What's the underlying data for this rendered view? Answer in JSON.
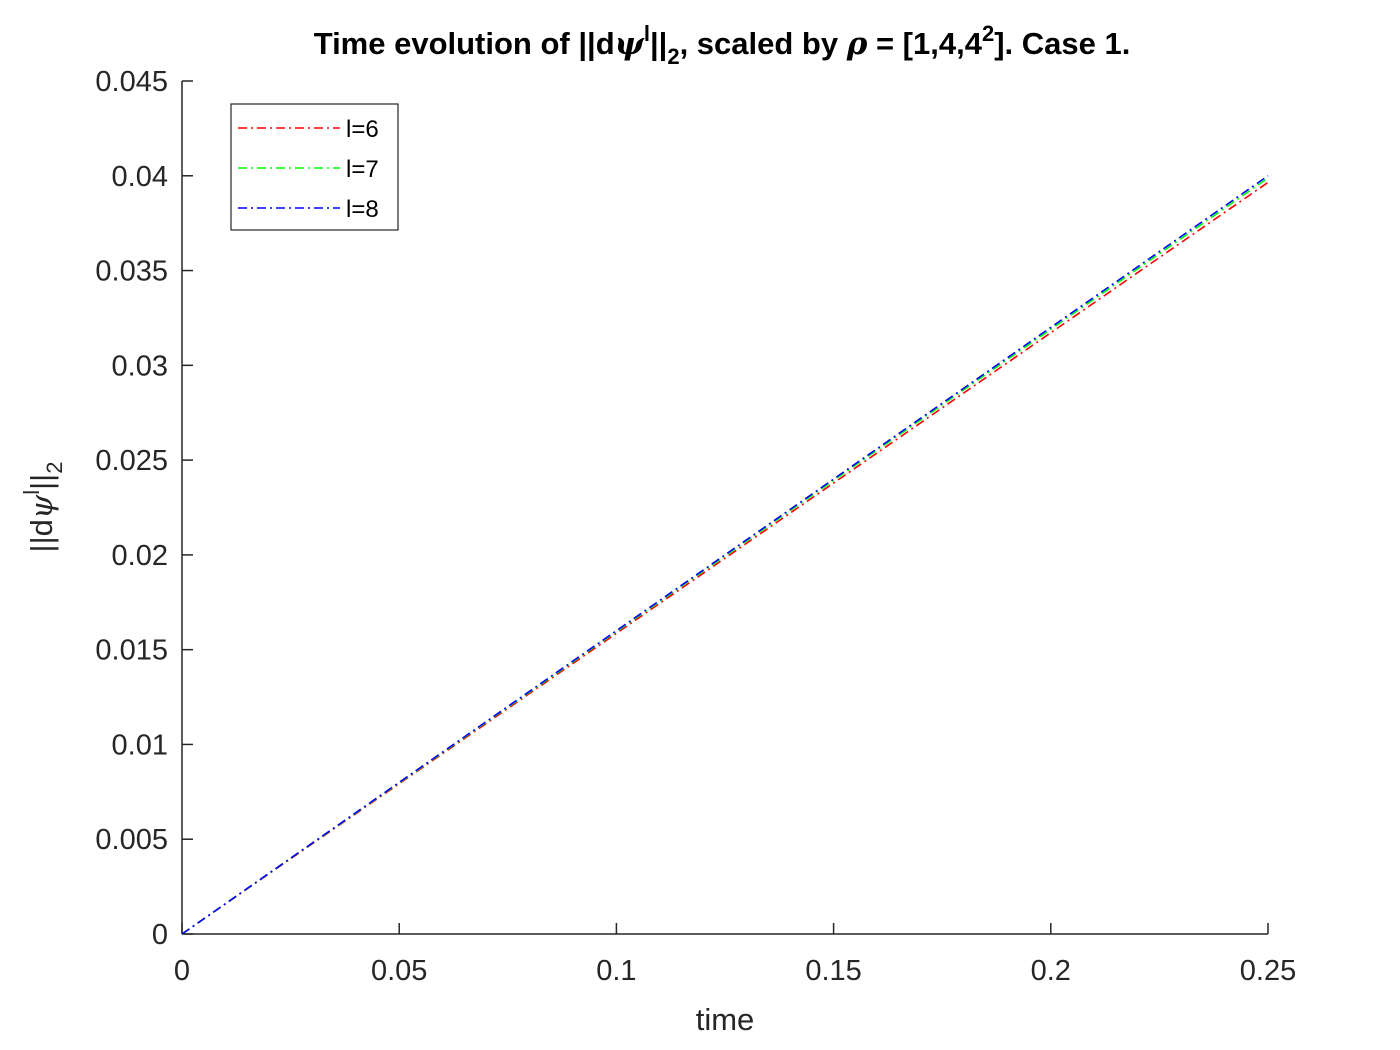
{
  "chart_data": {
    "type": "line",
    "title": {
      "prefix": "Time evolution of ||d",
      "psi": "ψ",
      "superscript": "l",
      "bars": "||",
      "subscript": "2",
      "middle": ", scaled by ",
      "rho": "ρ",
      "equals": " = [1,4,4",
      "power": "2",
      "suffix": "]. Case 1."
    },
    "xlabel": "time",
    "ylabel": {
      "prefix": "||d",
      "psi": "ψ",
      "superscript": "l",
      "bars": "||",
      "subscript": "2"
    },
    "xlim": [
      0,
      0.25
    ],
    "ylim": [
      0,
      0.045
    ],
    "xticks": [
      {
        "value": 0,
        "label": "0"
      },
      {
        "value": 0.05,
        "label": "0.05"
      },
      {
        "value": 0.1,
        "label": "0.1"
      },
      {
        "value": 0.15,
        "label": "0.15"
      },
      {
        "value": 0.2,
        "label": "0.2"
      },
      {
        "value": 0.25,
        "label": "0.25"
      }
    ],
    "yticks": [
      {
        "value": 0,
        "label": "0"
      },
      {
        "value": 0.005,
        "label": "0.005"
      },
      {
        "value": 0.01,
        "label": "0.01"
      },
      {
        "value": 0.015,
        "label": "0.015"
      },
      {
        "value": 0.02,
        "label": "0.02"
      },
      {
        "value": 0.025,
        "label": "0.025"
      },
      {
        "value": 0.03,
        "label": "0.03"
      },
      {
        "value": 0.035,
        "label": "0.035"
      },
      {
        "value": 0.04,
        "label": "0.04"
      },
      {
        "value": 0.045,
        "label": "0.045"
      }
    ],
    "grid": false,
    "legend_position": "top-left",
    "series": [
      {
        "name": "l=6",
        "color": "#ff0000",
        "line_style": "dash-dot",
        "x": [
          0,
          0.05,
          0.1,
          0.15,
          0.2,
          0.25
        ],
        "y": [
          0,
          0.00793,
          0.01586,
          0.02379,
          0.03172,
          0.03965
        ]
      },
      {
        "name": "l=7",
        "color": "#00ff00",
        "line_style": "dash-dot",
        "x": [
          0,
          0.05,
          0.1,
          0.15,
          0.2,
          0.25
        ],
        "y": [
          0,
          0.007976,
          0.015952,
          0.023928,
          0.031904,
          0.03988
        ]
      },
      {
        "name": "l=8",
        "color": "#0000ff",
        "line_style": "dash-dot",
        "x": [
          0,
          0.05,
          0.1,
          0.15,
          0.2,
          0.25
        ],
        "y": [
          0,
          0.008,
          0.016,
          0.024,
          0.032,
          0.04
        ]
      }
    ]
  }
}
